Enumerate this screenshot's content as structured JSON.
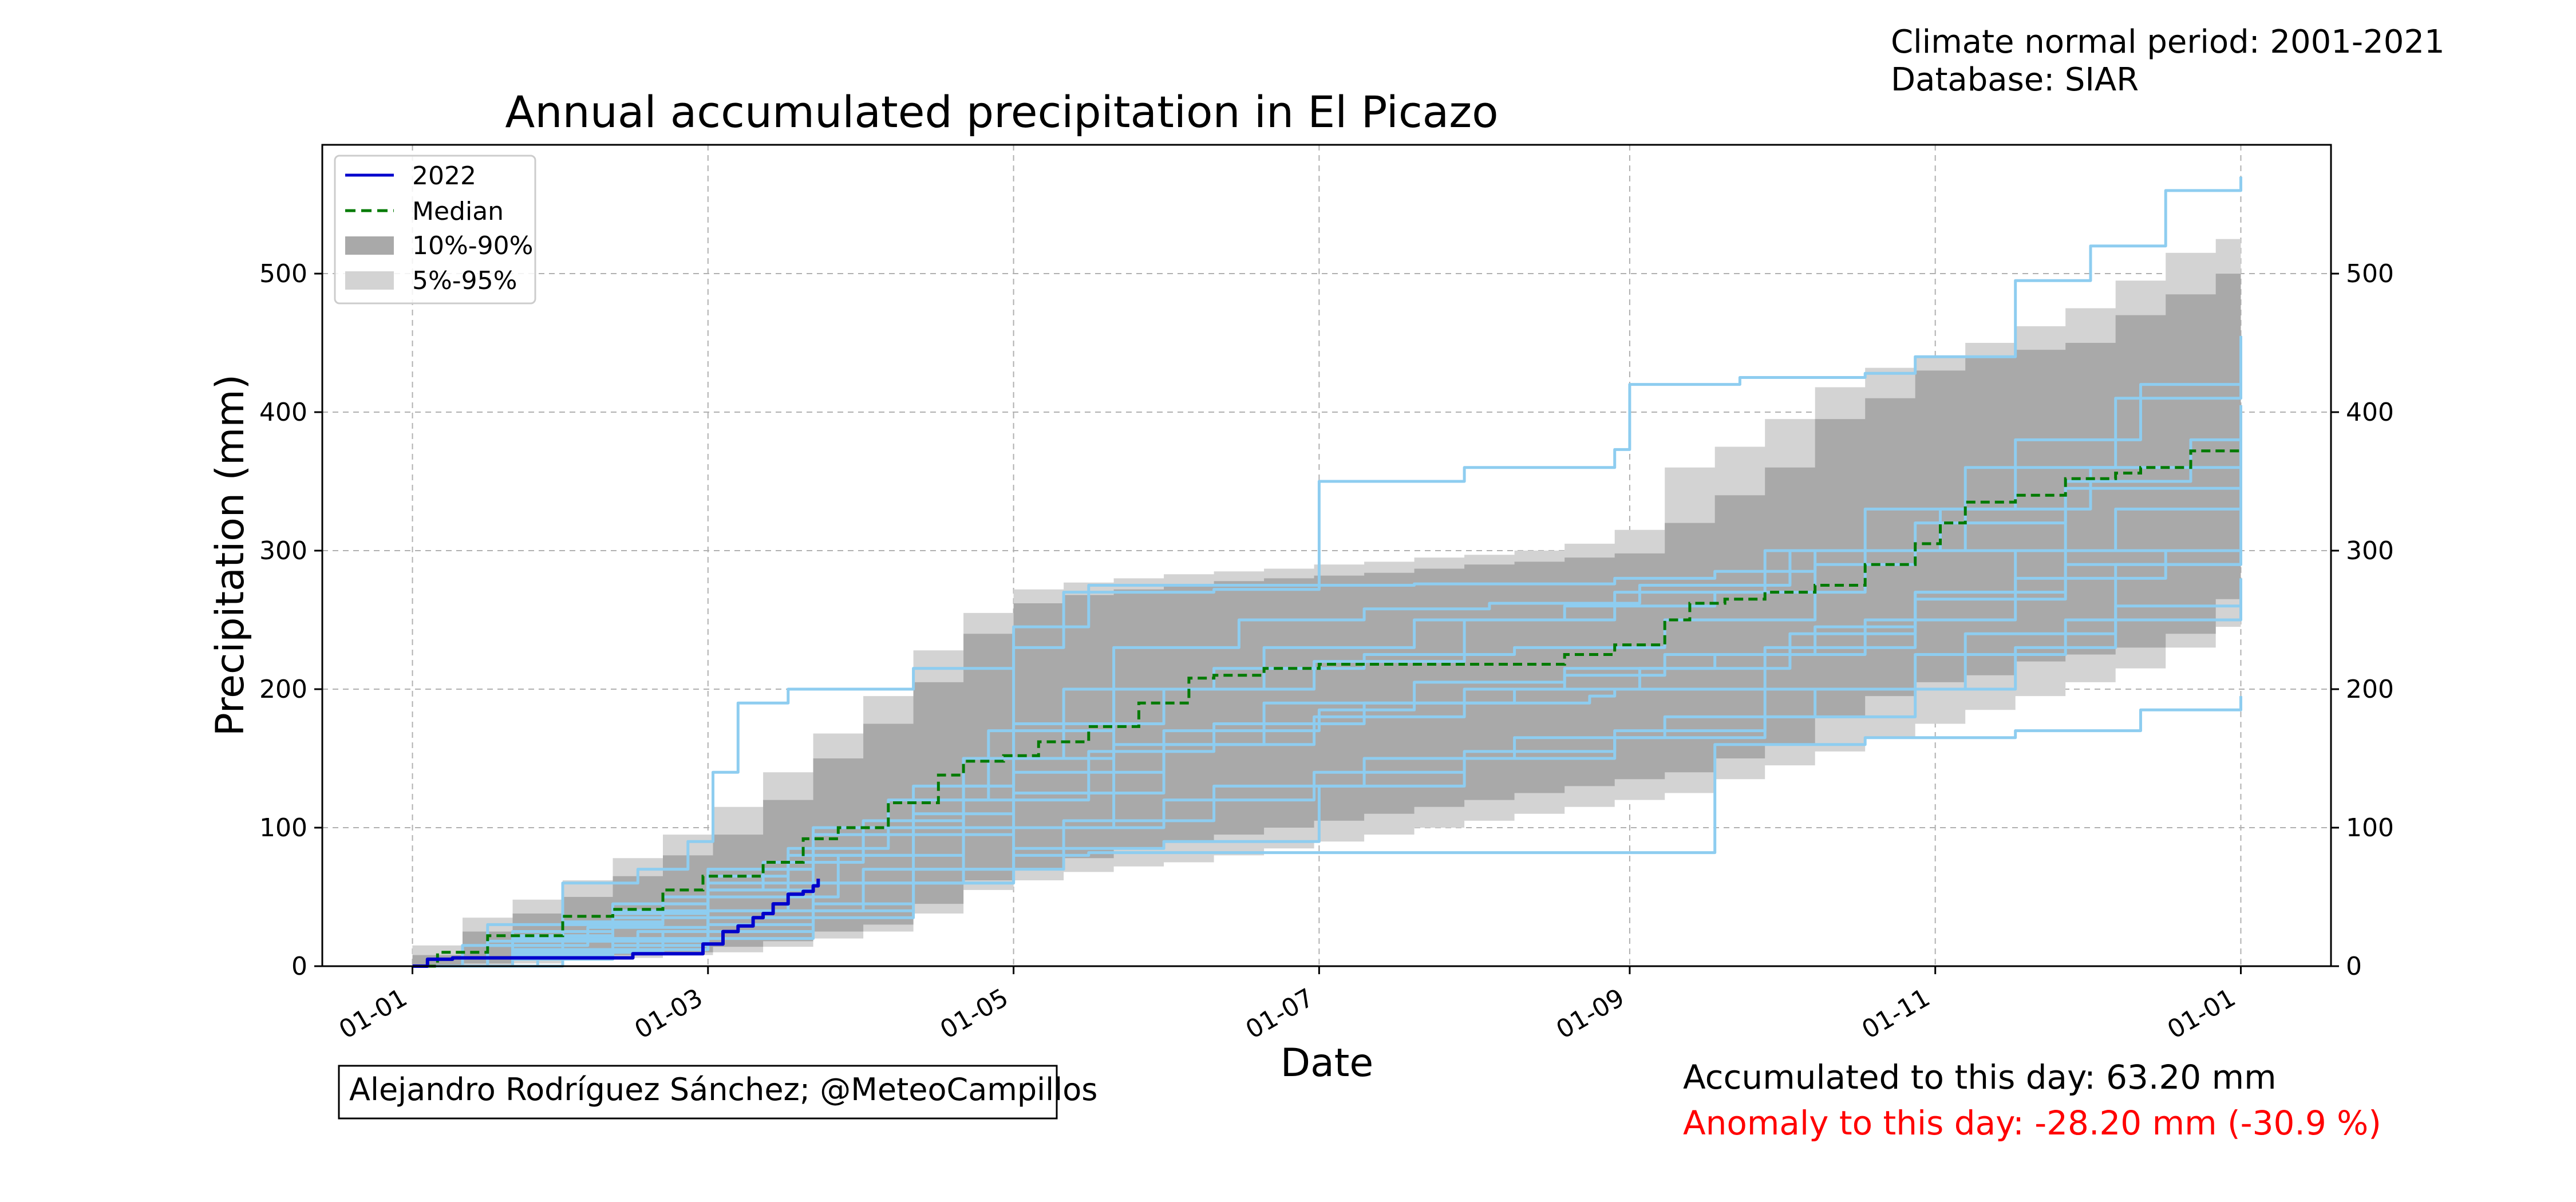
{
  "header": {
    "climate_period": "Climate normal period: 2001-2021",
    "database": "Database: SIAR"
  },
  "footer": {
    "author": "Alejandro Rodríguez Sánchez; @MeteoCampillos",
    "accumulated": "Accumulated to this day: 63.20 mm",
    "anomaly": "Anomaly to this day: -28.20 mm (-30.9 %)"
  },
  "colors": {
    "current_year": "#0000cc",
    "median": "#007a00",
    "band_10_90": "#a9a9a9",
    "band_5_95": "#d3d3d3",
    "historical": "#8ecdf0",
    "anomaly_text": "#ff0000"
  },
  "chart_data": {
    "type": "line",
    "title": "Annual accumulated precipitation in El Picazo",
    "xlabel": "Date",
    "ylabel": "Precipitation (mm)",
    "x_ticks": [
      {
        "label": "01-01",
        "day": 0
      },
      {
        "label": "01-03",
        "day": 59
      },
      {
        "label": "01-05",
        "day": 120
      },
      {
        "label": "01-07",
        "day": 181
      },
      {
        "label": "01-09",
        "day": 243
      },
      {
        "label": "01-11",
        "day": 304
      },
      {
        "label": "01-01",
        "day": 365
      }
    ],
    "y_ticks": [
      0,
      100,
      200,
      300,
      400,
      500
    ],
    "xlim": [
      -18,
      383
    ],
    "ylim": [
      0,
      593
    ],
    "grid": true,
    "legend_position": "top-left",
    "legend": [
      "2022",
      "Median",
      "10%-90%",
      "5%-95%"
    ],
    "current_year": {
      "name": "2022",
      "x": [
        0,
        3,
        8,
        25,
        40,
        44,
        50,
        55,
        58,
        60,
        62,
        65,
        68,
        70,
        72,
        75,
        78,
        80,
        81
      ],
      "y": [
        0,
        5,
        6,
        6,
        6,
        9,
        9,
        9,
        16,
        16,
        25,
        29,
        35,
        38,
        45,
        52,
        54,
        58,
        63.2
      ]
    },
    "median": {
      "name": "Median",
      "x": [
        0,
        5,
        15,
        30,
        40,
        50,
        58,
        70,
        78,
        85,
        95,
        105,
        110,
        118,
        125,
        135,
        145,
        155,
        160,
        170,
        181,
        200,
        220,
        230,
        240,
        250,
        255,
        262,
        270,
        280,
        290,
        300,
        305,
        310,
        320,
        330,
        340,
        345,
        355,
        365
      ],
      "y": [
        0,
        10,
        22,
        36,
        41,
        55,
        65,
        75,
        92,
        100,
        118,
        138,
        148,
        152,
        162,
        173,
        190,
        208,
        210,
        215,
        218,
        218,
        218,
        225,
        232,
        250,
        262,
        265,
        270,
        275,
        290,
        305,
        320,
        335,
        340,
        352,
        356,
        360,
        372,
        373
      ]
    },
    "band_10_90": {
      "name": "10%-90%",
      "x": [
        0,
        10,
        20,
        30,
        40,
        50,
        60,
        70,
        80,
        90,
        100,
        110,
        120,
        130,
        140,
        150,
        160,
        170,
        180,
        190,
        200,
        210,
        220,
        230,
        240,
        250,
        260,
        270,
        280,
        290,
        300,
        310,
        320,
        330,
        340,
        350,
        360,
        365
      ],
      "lower": [
        0,
        2,
        4,
        6,
        8,
        10,
        14,
        18,
        25,
        30,
        45,
        62,
        70,
        78,
        85,
        90,
        95,
        100,
        105,
        110,
        115,
        120,
        125,
        130,
        135,
        140,
        150,
        160,
        180,
        195,
        205,
        210,
        220,
        225,
        230,
        240,
        265,
        305
      ],
      "upper": [
        8,
        25,
        38,
        50,
        65,
        80,
        95,
        120,
        150,
        175,
        205,
        240,
        262,
        268,
        272,
        275,
        278,
        280,
        282,
        284,
        287,
        290,
        292,
        295,
        298,
        320,
        340,
        360,
        395,
        410,
        430,
        440,
        445,
        450,
        470,
        485,
        500,
        505
      ]
    },
    "band_5_95": {
      "name": "5%-95%",
      "x": [
        0,
        10,
        20,
        30,
        40,
        50,
        60,
        70,
        80,
        90,
        100,
        110,
        120,
        130,
        140,
        150,
        160,
        170,
        180,
        190,
        200,
        210,
        220,
        230,
        240,
        250,
        260,
        270,
        280,
        290,
        300,
        310,
        320,
        330,
        340,
        350,
        360,
        365
      ],
      "lower": [
        0,
        1,
        2,
        4,
        6,
        8,
        10,
        14,
        20,
        25,
        38,
        55,
        62,
        68,
        72,
        75,
        80,
        85,
        90,
        95,
        100,
        105,
        110,
        115,
        120,
        125,
        135,
        145,
        155,
        165,
        175,
        185,
        195,
        205,
        215,
        230,
        245,
        255
      ],
      "upper": [
        15,
        35,
        48,
        62,
        78,
        95,
        115,
        140,
        168,
        195,
        228,
        255,
        272,
        277,
        280,
        283,
        285,
        287,
        290,
        292,
        295,
        297,
        300,
        305,
        315,
        360,
        375,
        395,
        418,
        432,
        440,
        450,
        462,
        475,
        495,
        515,
        525,
        528
      ]
    },
    "historical_years": [
      {
        "x": [
          0,
          15,
          30,
          45,
          55,
          60,
          65,
          75,
          100,
          120,
          135,
          181,
          210,
          240,
          243,
          265,
          290,
          300,
          320,
          335,
          350,
          365
        ],
        "y": [
          0,
          30,
          60,
          70,
          90,
          140,
          190,
          200,
          215,
          245,
          275,
          350,
          360,
          373,
          420,
          425,
          428,
          440,
          495,
          520,
          560,
          570
        ]
      },
      {
        "x": [
          0,
          20,
          40,
          59,
          80,
          100,
          110,
          120,
          130,
          160,
          181,
          200,
          240,
          260,
          280,
          300,
          330,
          355,
          365
        ],
        "y": [
          0,
          20,
          35,
          55,
          80,
          100,
          130,
          230,
          270,
          272,
          275,
          276,
          280,
          285,
          290,
          300,
          350,
          380,
          390
        ]
      },
      {
        "x": [
          0,
          20,
          40,
          59,
          80,
          100,
          120,
          150,
          181,
          210,
          240,
          270,
          300,
          320,
          340,
          365
        ],
        "y": [
          0,
          10,
          20,
          30,
          45,
          60,
          85,
          90,
          130,
          150,
          165,
          180,
          200,
          230,
          290,
          330
        ]
      },
      {
        "x": [
          0,
          10,
          30,
          50,
          59,
          80,
          100,
          120,
          150,
          180,
          210,
          230,
          250,
          280,
          300,
          320,
          340,
          365
        ],
        "y": [
          0,
          15,
          30,
          50,
          70,
          95,
          110,
          140,
          160,
          180,
          200,
          210,
          225,
          245,
          270,
          300,
          330,
          350
        ]
      },
      {
        "x": [
          0,
          20,
          45,
          59,
          75,
          100,
          120,
          150,
          181,
          200,
          235,
          240,
          270,
          300,
          330,
          365
        ],
        "y": [
          0,
          12,
          25,
          40,
          60,
          95,
          125,
          170,
          185,
          190,
          195,
          200,
          230,
          270,
          290,
          320
        ]
      },
      {
        "x": [
          0,
          20,
          40,
          59,
          80,
          100,
          120,
          135,
          160,
          181,
          210,
          240,
          260,
          290,
          320,
          345,
          365
        ],
        "y": [
          0,
          5,
          12,
          20,
          35,
          60,
          80,
          82,
          82,
          82,
          82,
          82,
          160,
          165,
          170,
          185,
          195
        ]
      },
      {
        "x": [
          0,
          15,
          30,
          50,
          59,
          75,
          90,
          110,
          130,
          160,
          190,
          220,
          250,
          280,
          310,
          340,
          365
        ],
        "y": [
          0,
          18,
          32,
          45,
          65,
          80,
          100,
          150,
          200,
          215,
          225,
          230,
          250,
          300,
          360,
          410,
          440
        ]
      },
      {
        "x": [
          0,
          20,
          40,
          59,
          70,
          90,
          110,
          140,
          170,
          200,
          230,
          260,
          290,
          320,
          345,
          365
        ],
        "y": [
          0,
          25,
          40,
          55,
          75,
          105,
          150,
          200,
          230,
          250,
          260,
          270,
          330,
          380,
          420,
          455
        ]
      },
      {
        "x": [
          0,
          20,
          40,
          59,
          80,
          100,
          130,
          160,
          190,
          220,
          250,
          280,
          310,
          340,
          365
        ],
        "y": [
          0,
          8,
          15,
          25,
          40,
          70,
          105,
          130,
          150,
          165,
          180,
          200,
          240,
          260,
          270
        ]
      },
      {
        "x": [
          0,
          20,
          40,
          59,
          80,
          100,
          120,
          150,
          180,
          210,
          240,
          270,
          300,
          330,
          365
        ],
        "y": [
          0,
          20,
          45,
          70,
          100,
          130,
          175,
          200,
          220,
          250,
          270,
          300,
          320,
          345,
          360
        ]
      },
      {
        "x": [
          0,
          25,
          50,
          59,
          80,
          110,
          140,
          170,
          200,
          230,
          260,
          290,
          320,
          350,
          365
        ],
        "y": [
          0,
          10,
          25,
          35,
          60,
          100,
          160,
          190,
          205,
          215,
          225,
          250,
          280,
          300,
          310
        ]
      },
      {
        "x": [
          0,
          15,
          35,
          59,
          85,
          110,
          135,
          160,
          190,
          220,
          245,
          275,
          300,
          330,
          365
        ],
        "y": [
          0,
          15,
          28,
          50,
          80,
          120,
          155,
          175,
          190,
          200,
          215,
          240,
          265,
          300,
          340
        ]
      },
      {
        "x": [
          0,
          20,
          40,
          59,
          75,
          95,
          115,
          140,
          165,
          190,
          215,
          245,
          275,
          305,
          335,
          365
        ],
        "y": [
          0,
          22,
          38,
          60,
          85,
          120,
          170,
          230,
          250,
          258,
          262,
          275,
          300,
          330,
          360,
          405
        ]
      },
      {
        "x": [
          0,
          30,
          59,
          90,
          120,
          150,
          180,
          210,
          240,
          270,
          300,
          330,
          365
        ],
        "y": [
          0,
          18,
          40,
          70,
          100,
          120,
          140,
          155,
          170,
          200,
          225,
          250,
          280
        ]
      }
    ]
  }
}
